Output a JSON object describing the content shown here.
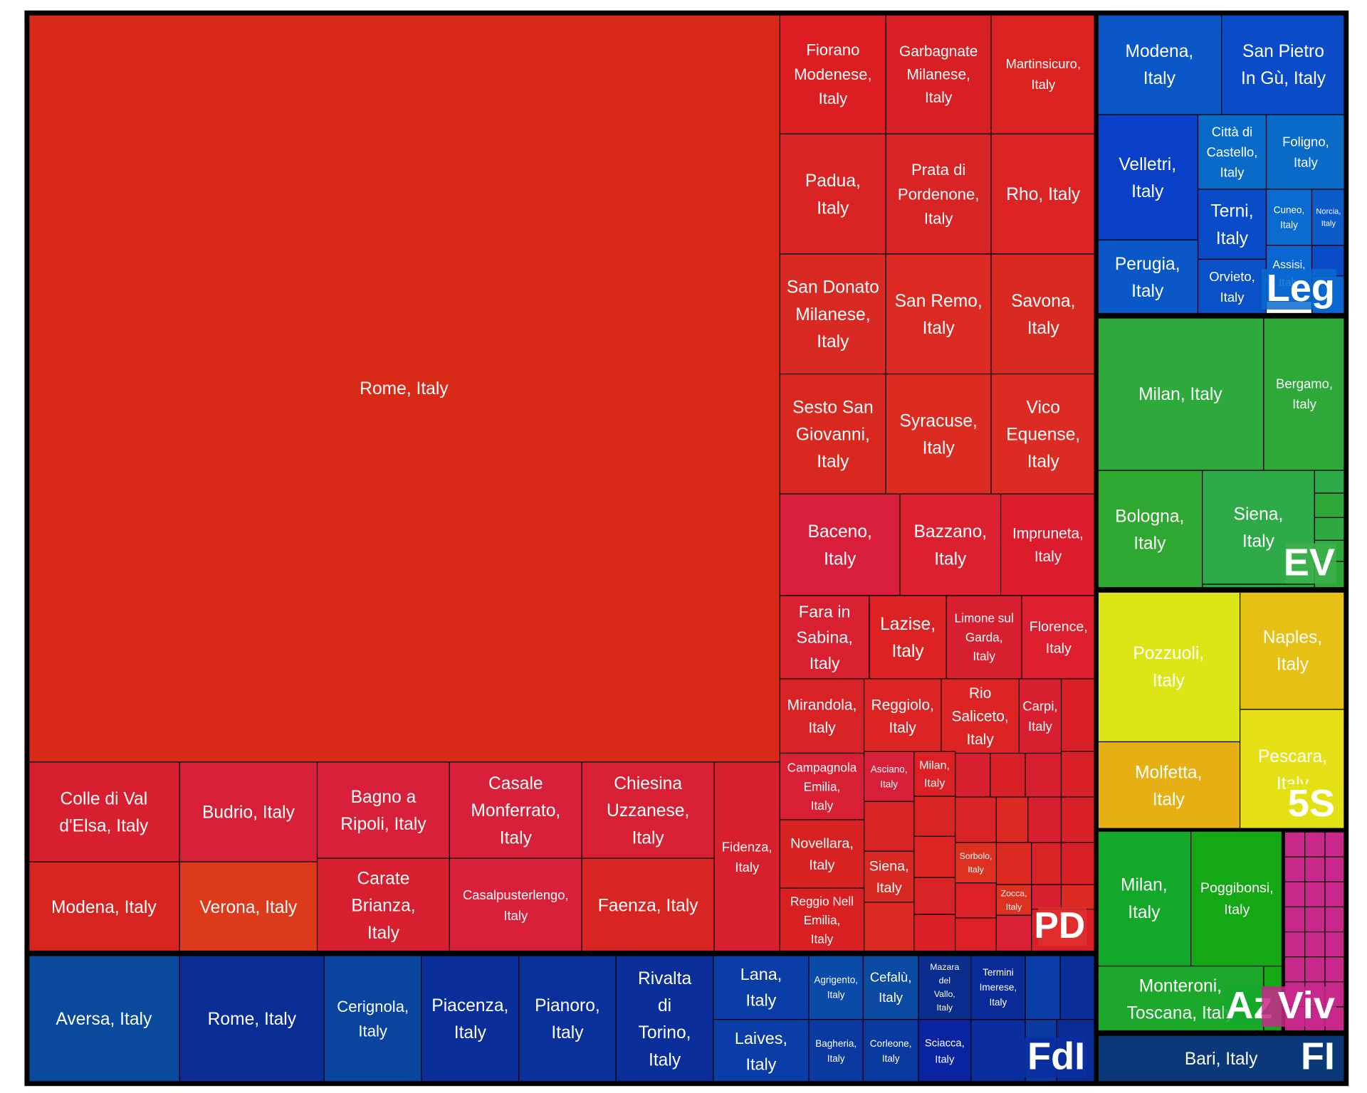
{
  "chart_data": {
    "type": "treemap",
    "title": "",
    "colors": {
      "PD": "#d42020",
      "FdI": "#0a3a9e",
      "Leg": "#0a4fc0",
      "EV": "#2eaa3a",
      "5S": "#e0d40a",
      "AzViv": "#14a014",
      "FI": "#0a3a78",
      "Viv": "#c8288a",
      "border": "#000000",
      "text": "#ffffff"
    },
    "groups": [
      {
        "name": "PD",
        "cells": [
          {
            "label": "Rome, Italy",
            "color": "#d92a18"
          },
          {
            "label": "Fiorano Modenese, Italy",
            "color": "#dc1d22"
          },
          {
            "label": "Garbagnate Milanese, Italy",
            "color": "#d81f24"
          },
          {
            "label": "Martinsicuro, Italy",
            "color": "#dc2221"
          },
          {
            "label": "Padua, Italy",
            "color": "#d92222"
          },
          {
            "label": "Prata di Pordenone, Italy",
            "color": "#d92426"
          },
          {
            "label": "Rho, Italy",
            "color": "#dc2424"
          },
          {
            "label": "San Donato Milanese, Italy",
            "color": "#d82a22"
          },
          {
            "label": "San Remo, Italy",
            "color": "#dc2a22"
          },
          {
            "label": "Savona, Italy",
            "color": "#d92a22"
          },
          {
            "label": "Sesto San Giovanni, Italy",
            "color": "#d8281f"
          },
          {
            "label": "Syracuse, Italy",
            "color": "#dc2b20"
          },
          {
            "label": "Vico Equense, Italy",
            "color": "#dc2b22"
          },
          {
            "label": "Baceno, Italy",
            "color": "#d81e3a"
          },
          {
            "label": "Bazzano, Italy",
            "color": "#dc2030"
          },
          {
            "label": "Impruneta, Italy",
            "color": "#dc1c2c"
          },
          {
            "label": "Fara in Sabina, Italy",
            "color": "#d82030"
          },
          {
            "label": "Lazise, Italy",
            "color": "#dc2222"
          },
          {
            "label": "Limone sul Garda, Italy",
            "color": "#d62030"
          },
          {
            "label": "Florence, Italy",
            "color": "#dc1e2e"
          },
          {
            "label": "Mirandola, Italy",
            "color": "#d82226"
          },
          {
            "label": "Reggiolo, Italy",
            "color": "#dc2424"
          },
          {
            "label": "Rio Saliceto, Italy",
            "color": "#dc2424"
          },
          {
            "label": "Carpi, Italy",
            "color": "#d81f30"
          },
          {
            "label": "Colle di Val d'Elsa, Italy",
            "color": "#d81f30"
          },
          {
            "label": "Budrio, Italy",
            "color": "#d81f38"
          },
          {
            "label": "Bagno a Ripoli, Italy",
            "color": "#d8203a"
          },
          {
            "label": "Casale Monferrato, Italy",
            "color": "#d8203a"
          },
          {
            "label": "Chiesina Uzzanese, Italy",
            "color": "#d82034"
          },
          {
            "label": "Fidenza, Italy",
            "color": "#d81f2e"
          },
          {
            "label": "Modena, Italy",
            "color": "#d82420"
          },
          {
            "label": "Verona, Italy",
            "color": "#dc3a1a"
          },
          {
            "label": "Carate Brianza, Italy",
            "color": "#d81f30"
          },
          {
            "label": "Casalpusterlengo, Italy",
            "color": "#d8203a"
          },
          {
            "label": "Faenza, Italy",
            "color": "#d82422"
          },
          {
            "label": "Campagnola Emilia, Italy",
            "color": "#d81f34"
          },
          {
            "label": "Asciano, Italy",
            "color": "#d81f3a"
          },
          {
            "label": "Milan, Italy",
            "color": "#dc2026"
          },
          {
            "label": "Novellara, Italy",
            "color": "#d82222"
          },
          {
            "label": "Siena, Italy",
            "color": "#d82822"
          },
          {
            "label": "Sorbolo, Italy",
            "color": "#dc3020"
          },
          {
            "label": "Zocca, Italy",
            "color": "#dc3020"
          },
          {
            "label": "Reggio Nell Emilia, Italy",
            "color": "#d82022"
          }
        ]
      },
      {
        "name": "FdI",
        "cells": [
          {
            "label": "Aversa, Italy",
            "color": "#0a4a9c"
          },
          {
            "label": "Rome, Italy",
            "color": "#0a2e96"
          },
          {
            "label": "Cerignola, Italy",
            "color": "#0a449e"
          },
          {
            "label": "Piacenza, Italy",
            "color": "#0a2e9a"
          },
          {
            "label": "Pianoro, Italy",
            "color": "#0a309c"
          },
          {
            "label": "Rivalta di Torino, Italy",
            "color": "#0a2e9a"
          },
          {
            "label": "Lana, Italy",
            "color": "#0a3ea6"
          },
          {
            "label": "Laives, Italy",
            "color": "#0a3ea6"
          },
          {
            "label": "Agrigento, Italy",
            "color": "#0a4aa8"
          },
          {
            "label": "Bagheria, Italy",
            "color": "#0a3aa0"
          },
          {
            "label": "Cefalù, Italy",
            "color": "#0a4aa0"
          },
          {
            "label": "Corleone, Italy",
            "color": "#0a3aa0"
          },
          {
            "label": "Mazara del Vallo, Italy",
            "color": "#0a2c8c"
          },
          {
            "label": "Sciacca, Italy",
            "color": "#0a24a0"
          },
          {
            "label": "Termini Imerese, Italy",
            "color": "#0a2a98"
          }
        ]
      },
      {
        "name": "Leg",
        "cells": [
          {
            "label": "Modena, Italy",
            "color": "#0a58c8"
          },
          {
            "label": "San Pietro In Gù, Italy",
            "color": "#0a4cc8"
          },
          {
            "label": "Velletri, Italy",
            "color": "#0a40c8"
          },
          {
            "label": "Città di Castello, Italy",
            "color": "#0a6ac8"
          },
          {
            "label": "Foligno, Italy",
            "color": "#0a6ac8"
          },
          {
            "label": "Terni, Italy",
            "color": "#0a4cc8"
          },
          {
            "label": "Cuneo, Italy",
            "color": "#0a6ad0"
          },
          {
            "label": "Norcia, Italy",
            "color": "#0a5ac8"
          },
          {
            "label": "Perugia, Italy",
            "color": "#0a58c8"
          },
          {
            "label": "Orvieto, Italy",
            "color": "#0a50c8"
          },
          {
            "label": "Assisi, Italy",
            "color": "#0a66d0"
          }
        ]
      },
      {
        "name": "EV",
        "cells": [
          {
            "label": "Milan, Italy",
            "color": "#2eaa3c"
          },
          {
            "label": "Bergamo, Italy",
            "color": "#2ea838"
          },
          {
            "label": "Bologna, Italy",
            "color": "#2ea830"
          },
          {
            "label": "Siena, Italy",
            "color": "#2eaa48"
          }
        ]
      },
      {
        "name": "5S",
        "cells": [
          {
            "label": "Pozzuoli, Italy",
            "color": "#dce616"
          },
          {
            "label": "Naples, Italy",
            "color": "#e6c014"
          },
          {
            "label": "Molfetta, Italy",
            "color": "#e6b014"
          },
          {
            "label": "Pescara, Italy",
            "color": "#e6e016"
          }
        ]
      },
      {
        "name": "Az",
        "cells": [
          {
            "label": "Milan, Italy",
            "color": "#14a82a"
          },
          {
            "label": "Poggibonsi, Italy",
            "color": "#14a814"
          },
          {
            "label": "Monteroni, Toscana, Italy",
            "color": "#1ca82a"
          }
        ]
      },
      {
        "name": "Viv",
        "cells": []
      },
      {
        "name": "FI",
        "cells": [
          {
            "label": "Bari, Italy",
            "color": "#0a3878"
          }
        ]
      }
    ]
  }
}
